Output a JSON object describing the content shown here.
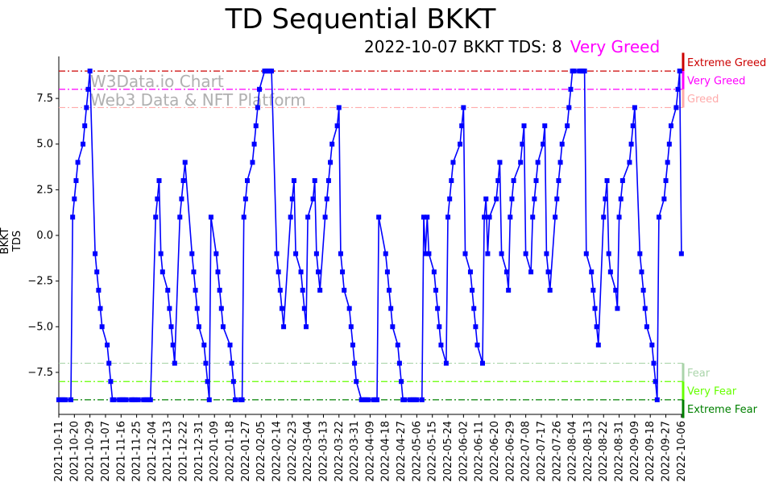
{
  "title": "TD Sequential BKKT",
  "subtitle": {
    "text": "2022-10-07 BKKT TDS: 8",
    "status": "Very Greed",
    "status_color": "#ff00ff"
  },
  "watermark": {
    "line1": "W3Data.io Chart",
    "line2": "Web3 Data & NFT Platform"
  },
  "chart_data": {
    "type": "line",
    "ylabel": "BKKT TDS",
    "ylim": [
      -9.8,
      9.8
    ],
    "yticks": [
      -7.5,
      -5.0,
      -2.5,
      0.0,
      2.5,
      5.0,
      7.5
    ],
    "ytick_labels": [
      "−7.5",
      "−5.0",
      "−2.5",
      "0.0",
      "2.5",
      "5.0",
      "7.5"
    ],
    "xlim": [
      "2021-10-11",
      "2022-10-07"
    ],
    "xticks": [
      "2021-10-11",
      "2021-10-20",
      "2021-10-29",
      "2021-11-07",
      "2021-11-16",
      "2021-11-25",
      "2021-12-04",
      "2021-12-13",
      "2021-12-22",
      "2021-12-31",
      "2022-01-09",
      "2022-01-18",
      "2022-01-27",
      "2022-02-05",
      "2022-02-14",
      "2022-02-23",
      "2022-03-04",
      "2022-03-13",
      "2022-03-22",
      "2022-03-31",
      "2022-04-09",
      "2022-04-18",
      "2022-04-27",
      "2022-05-06",
      "2022-05-15",
      "2022-05-24",
      "2022-06-02",
      "2022-06-11",
      "2022-06-20",
      "2022-06-29",
      "2022-07-08",
      "2022-07-17",
      "2022-07-26",
      "2022-08-04",
      "2022-08-13",
      "2022-08-22",
      "2022-08-31",
      "2022-09-09",
      "2022-09-18",
      "2022-09-27",
      "2022-10-06"
    ],
    "grid": false,
    "series": [
      {
        "color": "#0000ff",
        "marker": "square",
        "points": [
          [
            "2021-10-11",
            -9
          ],
          [
            "2021-10-12",
            -9
          ],
          [
            "2021-10-13",
            -9
          ],
          [
            "2021-10-14",
            -9
          ],
          [
            "2021-10-15",
            -9
          ],
          [
            "2021-10-18",
            -9
          ],
          [
            "2021-10-19",
            1
          ],
          [
            "2021-10-20",
            2
          ],
          [
            "2021-10-21",
            3
          ],
          [
            "2021-10-22",
            4
          ],
          [
            "2021-10-25",
            5
          ],
          [
            "2021-10-26",
            6
          ],
          [
            "2021-10-27",
            7
          ],
          [
            "2021-10-28",
            8
          ],
          [
            "2021-10-29",
            9
          ],
          [
            "2021-11-01",
            -1
          ],
          [
            "2021-11-02",
            -2
          ],
          [
            "2021-11-03",
            -3
          ],
          [
            "2021-11-04",
            -4
          ],
          [
            "2021-11-05",
            -5
          ],
          [
            "2021-11-08",
            -6
          ],
          [
            "2021-11-09",
            -7
          ],
          [
            "2021-11-10",
            -8
          ],
          [
            "2021-11-11",
            -9
          ],
          [
            "2021-11-12",
            -9
          ],
          [
            "2021-11-15",
            -9
          ],
          [
            "2021-11-16",
            -9
          ],
          [
            "2021-11-17",
            -9
          ],
          [
            "2021-11-18",
            -9
          ],
          [
            "2021-11-19",
            -9
          ],
          [
            "2021-11-22",
            -9
          ],
          [
            "2021-11-23",
            -9
          ],
          [
            "2021-11-24",
            -9
          ],
          [
            "2021-11-26",
            -9
          ],
          [
            "2021-11-29",
            -9
          ],
          [
            "2021-11-30",
            -9
          ],
          [
            "2021-12-01",
            -9
          ],
          [
            "2021-12-02",
            -9
          ],
          [
            "2021-12-03",
            -9
          ],
          [
            "2021-12-06",
            1
          ],
          [
            "2021-12-07",
            2
          ],
          [
            "2021-12-08",
            3
          ],
          [
            "2021-12-09",
            -1
          ],
          [
            "2021-12-10",
            -2
          ],
          [
            "2021-12-13",
            -3
          ],
          [
            "2021-12-14",
            -4
          ],
          [
            "2021-12-15",
            -5
          ],
          [
            "2021-12-16",
            -6
          ],
          [
            "2021-12-17",
            -7
          ],
          [
            "2021-12-20",
            1
          ],
          [
            "2021-12-21",
            2
          ],
          [
            "2021-12-22",
            3
          ],
          [
            "2021-12-23",
            4
          ],
          [
            "2021-12-27",
            -1
          ],
          [
            "2021-12-28",
            -2
          ],
          [
            "2021-12-29",
            -3
          ],
          [
            "2021-12-30",
            -4
          ],
          [
            "2021-12-31",
            -5
          ],
          [
            "2022-01-03",
            -6
          ],
          [
            "2022-01-04",
            -7
          ],
          [
            "2022-01-05",
            -8
          ],
          [
            "2022-01-06",
            -9
          ],
          [
            "2022-01-07",
            1
          ],
          [
            "2022-01-10",
            -1
          ],
          [
            "2022-01-11",
            -2
          ],
          [
            "2022-01-12",
            -3
          ],
          [
            "2022-01-13",
            -4
          ],
          [
            "2022-01-14",
            -5
          ],
          [
            "2022-01-18",
            -6
          ],
          [
            "2022-01-19",
            -7
          ],
          [
            "2022-01-20",
            -8
          ],
          [
            "2022-01-21",
            -9
          ],
          [
            "2022-01-24",
            -9
          ],
          [
            "2022-01-25",
            -9
          ],
          [
            "2022-01-26",
            1
          ],
          [
            "2022-01-27",
            2
          ],
          [
            "2022-01-28",
            3
          ],
          [
            "2022-01-31",
            4
          ],
          [
            "2022-02-01",
            5
          ],
          [
            "2022-02-02",
            6
          ],
          [
            "2022-02-03",
            7
          ],
          [
            "2022-02-04",
            8
          ],
          [
            "2022-02-07",
            9
          ],
          [
            "2022-02-08",
            9
          ],
          [
            "2022-02-09",
            9
          ],
          [
            "2022-02-10",
            9
          ],
          [
            "2022-02-11",
            9
          ],
          [
            "2022-02-14",
            -1
          ],
          [
            "2022-02-15",
            -2
          ],
          [
            "2022-02-16",
            -3
          ],
          [
            "2022-02-17",
            -4
          ],
          [
            "2022-02-18",
            -5
          ],
          [
            "2022-02-22",
            1
          ],
          [
            "2022-02-23",
            2
          ],
          [
            "2022-02-24",
            3
          ],
          [
            "2022-02-25",
            -1
          ],
          [
            "2022-02-28",
            -2
          ],
          [
            "2022-03-01",
            -3
          ],
          [
            "2022-03-02",
            -4
          ],
          [
            "2022-03-03",
            -5
          ],
          [
            "2022-03-04",
            1
          ],
          [
            "2022-03-07",
            2
          ],
          [
            "2022-03-08",
            3
          ],
          [
            "2022-03-09",
            -1
          ],
          [
            "2022-03-10",
            -2
          ],
          [
            "2022-03-11",
            -3
          ],
          [
            "2022-03-14",
            1
          ],
          [
            "2022-03-15",
            2
          ],
          [
            "2022-03-16",
            3
          ],
          [
            "2022-03-17",
            4
          ],
          [
            "2022-03-18",
            5
          ],
          [
            "2022-03-21",
            6
          ],
          [
            "2022-03-22",
            7
          ],
          [
            "2022-03-23",
            -1
          ],
          [
            "2022-03-24",
            -2
          ],
          [
            "2022-03-25",
            -3
          ],
          [
            "2022-03-28",
            -4
          ],
          [
            "2022-03-29",
            -5
          ],
          [
            "2022-03-30",
            -6
          ],
          [
            "2022-03-31",
            -7
          ],
          [
            "2022-04-01",
            -8
          ],
          [
            "2022-04-04",
            -9
          ],
          [
            "2022-04-05",
            -9
          ],
          [
            "2022-04-06",
            -9
          ],
          [
            "2022-04-07",
            -9
          ],
          [
            "2022-04-08",
            -9
          ],
          [
            "2022-04-11",
            -9
          ],
          [
            "2022-04-12",
            -9
          ],
          [
            "2022-04-13",
            -9
          ],
          [
            "2022-04-14",
            1
          ],
          [
            "2022-04-18",
            -1
          ],
          [
            "2022-04-19",
            -2
          ],
          [
            "2022-04-20",
            -3
          ],
          [
            "2022-04-21",
            -4
          ],
          [
            "2022-04-22",
            -5
          ],
          [
            "2022-04-25",
            -6
          ],
          [
            "2022-04-26",
            -7
          ],
          [
            "2022-04-27",
            -8
          ],
          [
            "2022-04-28",
            -9
          ],
          [
            "2022-04-29",
            -9
          ],
          [
            "2022-05-02",
            -9
          ],
          [
            "2022-05-03",
            -9
          ],
          [
            "2022-05-04",
            -9
          ],
          [
            "2022-05-05",
            -9
          ],
          [
            "2022-05-06",
            -9
          ],
          [
            "2022-05-09",
            -9
          ],
          [
            "2022-05-10",
            1
          ],
          [
            "2022-05-11",
            -1
          ],
          [
            "2022-05-12",
            1
          ],
          [
            "2022-05-13",
            -1
          ],
          [
            "2022-05-16",
            -2
          ],
          [
            "2022-05-17",
            -3
          ],
          [
            "2022-05-18",
            -4
          ],
          [
            "2022-05-19",
            -5
          ],
          [
            "2022-05-20",
            -6
          ],
          [
            "2022-05-23",
            -7
          ],
          [
            "2022-05-24",
            1
          ],
          [
            "2022-05-25",
            2
          ],
          [
            "2022-05-26",
            3
          ],
          [
            "2022-05-27",
            4
          ],
          [
            "2022-05-31",
            5
          ],
          [
            "2022-06-01",
            6
          ],
          [
            "2022-06-02",
            7
          ],
          [
            "2022-06-03",
            -1
          ],
          [
            "2022-06-06",
            -2
          ],
          [
            "2022-06-07",
            -3
          ],
          [
            "2022-06-08",
            -4
          ],
          [
            "2022-06-09",
            -5
          ],
          [
            "2022-06-10",
            -6
          ],
          [
            "2022-06-13",
            -7
          ],
          [
            "2022-06-14",
            1
          ],
          [
            "2022-06-15",
            2
          ],
          [
            "2022-06-16",
            -1
          ],
          [
            "2022-06-17",
            1
          ],
          [
            "2022-06-21",
            2
          ],
          [
            "2022-06-22",
            3
          ],
          [
            "2022-06-23",
            4
          ],
          [
            "2022-06-24",
            -1
          ],
          [
            "2022-06-27",
            -2
          ],
          [
            "2022-06-28",
            -3
          ],
          [
            "2022-06-29",
            1
          ],
          [
            "2022-06-30",
            2
          ],
          [
            "2022-07-01",
            3
          ],
          [
            "2022-07-05",
            4
          ],
          [
            "2022-07-06",
            5
          ],
          [
            "2022-07-07",
            6
          ],
          [
            "2022-07-08",
            -1
          ],
          [
            "2022-07-11",
            -2
          ],
          [
            "2022-07-12",
            1
          ],
          [
            "2022-07-13",
            2
          ],
          [
            "2022-07-14",
            3
          ],
          [
            "2022-07-15",
            4
          ],
          [
            "2022-07-18",
            5
          ],
          [
            "2022-07-19",
            6
          ],
          [
            "2022-07-20",
            -1
          ],
          [
            "2022-07-21",
            -2
          ],
          [
            "2022-07-22",
            -3
          ],
          [
            "2022-07-25",
            1
          ],
          [
            "2022-07-26",
            2
          ],
          [
            "2022-07-27",
            3
          ],
          [
            "2022-07-28",
            4
          ],
          [
            "2022-07-29",
            5
          ],
          [
            "2022-08-01",
            6
          ],
          [
            "2022-08-02",
            7
          ],
          [
            "2022-08-03",
            8
          ],
          [
            "2022-08-04",
            9
          ],
          [
            "2022-08-05",
            9
          ],
          [
            "2022-08-08",
            9
          ],
          [
            "2022-08-09",
            9
          ],
          [
            "2022-08-10",
            9
          ],
          [
            "2022-08-11",
            9
          ],
          [
            "2022-08-12",
            -1
          ],
          [
            "2022-08-15",
            -2
          ],
          [
            "2022-08-16",
            -3
          ],
          [
            "2022-08-17",
            -4
          ],
          [
            "2022-08-18",
            -5
          ],
          [
            "2022-08-19",
            -6
          ],
          [
            "2022-08-22",
            1
          ],
          [
            "2022-08-23",
            2
          ],
          [
            "2022-08-24",
            3
          ],
          [
            "2022-08-25",
            -1
          ],
          [
            "2022-08-26",
            -2
          ],
          [
            "2022-08-29",
            -3
          ],
          [
            "2022-08-30",
            -4
          ],
          [
            "2022-08-31",
            1
          ],
          [
            "2022-09-01",
            2
          ],
          [
            "2022-09-02",
            3
          ],
          [
            "2022-09-06",
            4
          ],
          [
            "2022-09-07",
            5
          ],
          [
            "2022-09-08",
            6
          ],
          [
            "2022-09-09",
            7
          ],
          [
            "2022-09-12",
            -1
          ],
          [
            "2022-09-13",
            -2
          ],
          [
            "2022-09-14",
            -3
          ],
          [
            "2022-09-15",
            -4
          ],
          [
            "2022-09-16",
            -5
          ],
          [
            "2022-09-19",
            -6
          ],
          [
            "2022-09-20",
            -7
          ],
          [
            "2022-09-21",
            -8
          ],
          [
            "2022-09-22",
            -9
          ],
          [
            "2022-09-23",
            1
          ],
          [
            "2022-09-26",
            2
          ],
          [
            "2022-09-27",
            3
          ],
          [
            "2022-09-28",
            4
          ],
          [
            "2022-09-29",
            5
          ],
          [
            "2022-09-30",
            6
          ],
          [
            "2022-10-03",
            7
          ],
          [
            "2022-10-04",
            8
          ],
          [
            "2022-10-05",
            9
          ],
          [
            "2022-10-06",
            -1
          ]
        ]
      }
    ],
    "thresholds": [
      {
        "value": 9,
        "label": "Extreme Greed",
        "color": "#cc0000",
        "bar_from": 9,
        "bar_to": 10
      },
      {
        "value": 8,
        "label": "Very Greed",
        "color": "#ff00ff",
        "bar_from": 8,
        "bar_to": 9
      },
      {
        "value": 7,
        "label": "Greed",
        "color": "#ffaaaa",
        "bar_from": 7,
        "bar_to": 8
      },
      {
        "value": -7,
        "label": "Fear",
        "color": "#aad4aa",
        "bar_from": -8,
        "bar_to": -7
      },
      {
        "value": -8,
        "label": "Very Fear",
        "color": "#66ff00",
        "bar_from": -9,
        "bar_to": -8
      },
      {
        "value": -9,
        "label": "Extreme Fear",
        "color": "#008000",
        "bar_from": -10,
        "bar_to": -9
      }
    ]
  }
}
